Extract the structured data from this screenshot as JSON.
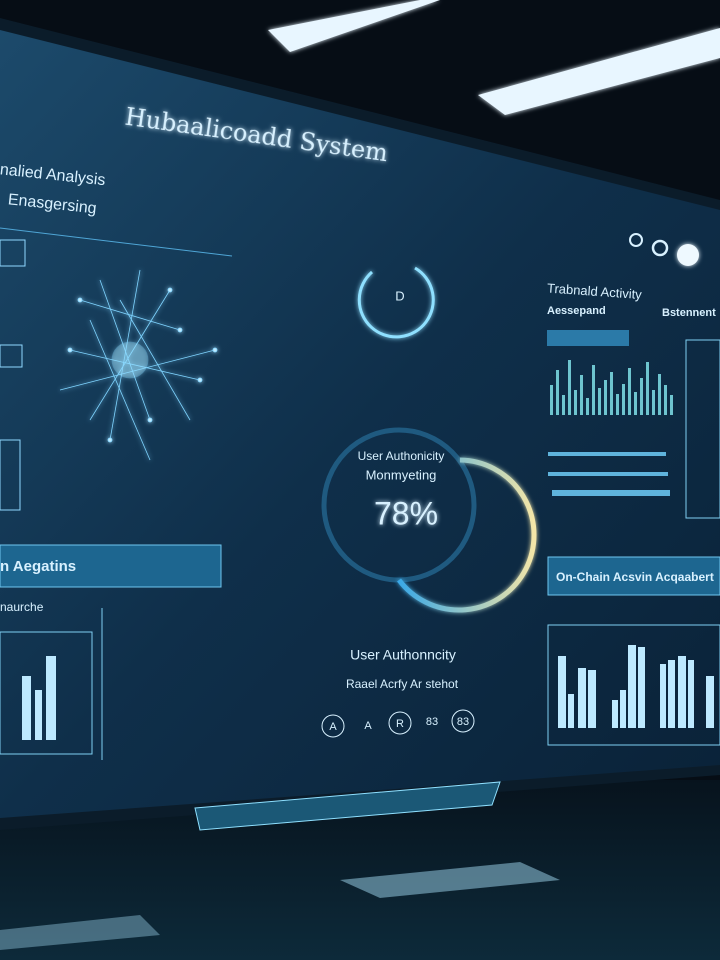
{
  "header": {
    "title": "Hubaalicoadd System"
  },
  "left_panel": {
    "title": "nalied Analysis",
    "subtitle": "Enasgersing",
    "section": "n Aegatins",
    "chart_label": "naurche"
  },
  "center_panel": {
    "gauge_label": [
      "User Authonicity",
      "Monmyeting"
    ],
    "gauge_value": "78%",
    "heading": "User Authonncity",
    "subheading": "Raael Acrfy Ar stehot",
    "buttons": [
      "A",
      "A",
      "R",
      "83",
      "83"
    ]
  },
  "right_panel": {
    "title": "Trabnald Activity",
    "tab_left": "Aessepand",
    "tab_right": "Bstennent",
    "section": "On-Chain Acsvin Acqaabert"
  }
}
